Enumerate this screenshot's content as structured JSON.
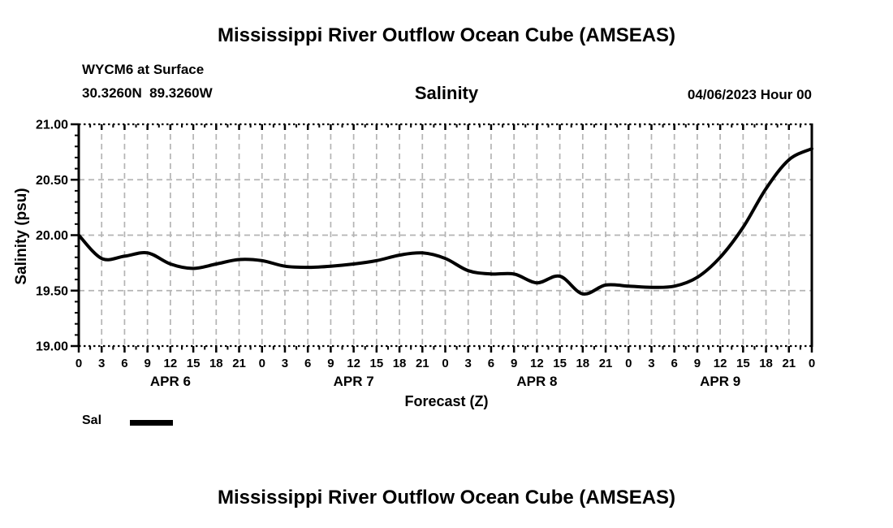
{
  "header": {
    "title": "Mississippi River Outflow Ocean Cube (AMSEAS)",
    "station_line1": "WYCM6 at Surface",
    "station_line2": "30.3260N  89.3260W",
    "panel_title": "Salinity",
    "datetime": "04/06/2023 Hour 00"
  },
  "footer": {
    "title": "Mississippi River Outflow Ocean Cube (AMSEAS)"
  },
  "legend": {
    "label": "Sal",
    "swatch_color": "#000000",
    "position": "bottom-left"
  },
  "chart_data": {
    "type": "line",
    "title": "Salinity",
    "xlabel": "Forecast (Z)",
    "ylabel": "Salinity (psu)",
    "ylim": [
      19.0,
      21.0
    ],
    "xlim_hours": [
      0,
      96
    ],
    "grid": true,
    "grid_color": "#b4b4b4",
    "line_color": "#000000",
    "axis_color": "#000000",
    "y_ticks": [
      {
        "value": 21.0,
        "label": "21.00"
      },
      {
        "value": 20.5,
        "label": "20.50"
      },
      {
        "value": 20.0,
        "label": "20.00"
      },
      {
        "value": 19.5,
        "label": "19.50"
      },
      {
        "value": 19.0,
        "label": "19.00"
      }
    ],
    "y_minor_step": 0.1,
    "x_minor_step_hours": 1.5,
    "x_ticks_hours": [
      0,
      3,
      6,
      9,
      12,
      15,
      18,
      21,
      24,
      27,
      30,
      33,
      36,
      39,
      42,
      45,
      48,
      51,
      54,
      57,
      60,
      63,
      66,
      69,
      72,
      75,
      78,
      81,
      84,
      87,
      90,
      93,
      96
    ],
    "x_tick_labels": [
      "0",
      "3",
      "6",
      "9",
      "12",
      "15",
      "18",
      "21",
      "0",
      "3",
      "6",
      "9",
      "12",
      "15",
      "18",
      "21",
      "0",
      "3",
      "6",
      "9",
      "12",
      "15",
      "18",
      "21",
      "0",
      "3",
      "6",
      "9",
      "12",
      "15",
      "18",
      "21",
      "0"
    ],
    "day_labels": [
      {
        "label": "APR 6",
        "hour": 12
      },
      {
        "label": "APR 7",
        "hour": 36
      },
      {
        "label": "APR 8",
        "hour": 60
      },
      {
        "label": "APR 9",
        "hour": 84
      }
    ],
    "series": [
      {
        "name": "Sal",
        "color": "#000000",
        "x_hours": [
          0,
          3,
          6,
          9,
          12,
          15,
          18,
          21,
          24,
          27,
          30,
          33,
          36,
          39,
          42,
          45,
          48,
          51,
          54,
          57,
          60,
          63,
          66,
          69,
          72,
          75,
          78,
          81,
          84,
          87,
          90,
          93,
          96
        ],
        "values": [
          20.0,
          19.79,
          19.81,
          19.84,
          19.74,
          19.7,
          19.74,
          19.78,
          19.77,
          19.72,
          19.71,
          19.72,
          19.74,
          19.77,
          19.82,
          19.84,
          19.79,
          19.68,
          19.65,
          19.65,
          19.57,
          19.63,
          19.47,
          19.55,
          19.54,
          19.53,
          19.54,
          19.62,
          19.8,
          20.07,
          20.42,
          20.68,
          20.78
        ]
      }
    ],
    "legend_position": "bottom-left"
  }
}
